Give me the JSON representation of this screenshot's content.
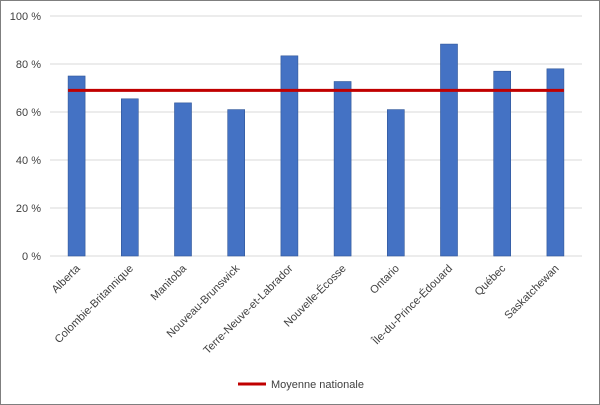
{
  "chart_data": {
    "type": "bar",
    "categories": [
      "Alberta",
      "Colombie-Britannique",
      "Manitoba",
      "Nouveau-Brunswick",
      "Terre-Neuve-et-Labrador",
      "Nouvelle-Écosse",
      "Ontario",
      "Île-du-Prince-Édouard",
      "Québec",
      "Saskatchewan"
    ],
    "values": [
      75,
      65.5,
      63.8,
      61,
      83.4,
      72.7,
      61,
      88.3,
      77,
      78
    ],
    "reference_line": {
      "name": "Moyenne nationale",
      "value": 69
    },
    "ylim": [
      0,
      100
    ],
    "yticks": [
      0,
      20,
      40,
      60,
      80,
      100
    ],
    "ytick_labels": [
      "0 %",
      "20 %",
      "40 %",
      "60 %",
      "80 %",
      "100 %"
    ],
    "grid": true,
    "legend_position": "bottom",
    "colors": {
      "bar": "#4472c4",
      "bar_edge": "#2f5597",
      "line": "#c00000",
      "grid": "#d9d9d9"
    }
  }
}
